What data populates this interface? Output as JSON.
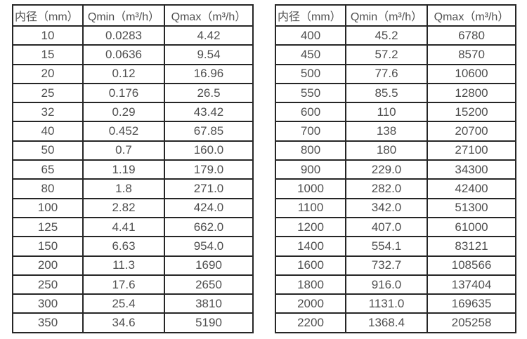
{
  "colors": {
    "border": "#262626",
    "text": "#4f4f4f",
    "background": "#ffffff"
  },
  "tables": [
    {
      "name": "flow-spec-table-small-diameters",
      "headers": [
        "内径（mm）",
        "Qmin（m³/h）",
        "Qmax（m³/h）"
      ],
      "rows": [
        [
          "10",
          "0.0283",
          "4.42"
        ],
        [
          "15",
          "0.0636",
          "9.54"
        ],
        [
          "20",
          "0.12",
          "16.96"
        ],
        [
          "25",
          "0.176",
          "26.5"
        ],
        [
          "32",
          "0.29",
          "43.42"
        ],
        [
          "40",
          "0.452",
          "67.85"
        ],
        [
          "50",
          "0.7",
          "160.0"
        ],
        [
          "65",
          "1.19",
          "179.0"
        ],
        [
          "80",
          "1.8",
          "271.0"
        ],
        [
          "100",
          "2.82",
          "424.0"
        ],
        [
          "125",
          "4.41",
          "662.0"
        ],
        [
          "150",
          "6.63",
          "954.0"
        ],
        [
          "200",
          "11.3",
          "1690"
        ],
        [
          "250",
          "17.6",
          "2650"
        ],
        [
          "300",
          "25.4",
          "3810"
        ],
        [
          "350",
          "34.6",
          "5190"
        ]
      ]
    },
    {
      "name": "flow-spec-table-large-diameters",
      "headers": [
        "内径（mm）",
        "Qmin（m³/h）",
        "Qmax（m³/h）"
      ],
      "rows": [
        [
          "400",
          "45.2",
          "6780"
        ],
        [
          "450",
          "57.2",
          "8570"
        ],
        [
          "500",
          "77.6",
          "10600"
        ],
        [
          "550",
          "85.5",
          "12800"
        ],
        [
          "600",
          "110",
          "15200"
        ],
        [
          "700",
          "138",
          "20700"
        ],
        [
          "800",
          "180",
          "27100"
        ],
        [
          "900",
          "229.0",
          "34300"
        ],
        [
          "1000",
          "282.0",
          "42400"
        ],
        [
          "1100",
          "342.0",
          "51300"
        ],
        [
          "1200",
          "407.0",
          "61000"
        ],
        [
          "1400",
          "554.1",
          "83121"
        ],
        [
          "1600",
          "732.7",
          "108566"
        ],
        [
          "1800",
          "916.0",
          "137404"
        ],
        [
          "2000",
          "1131.0",
          "169635"
        ],
        [
          "2200",
          "1368.4",
          "205258"
        ]
      ]
    }
  ]
}
